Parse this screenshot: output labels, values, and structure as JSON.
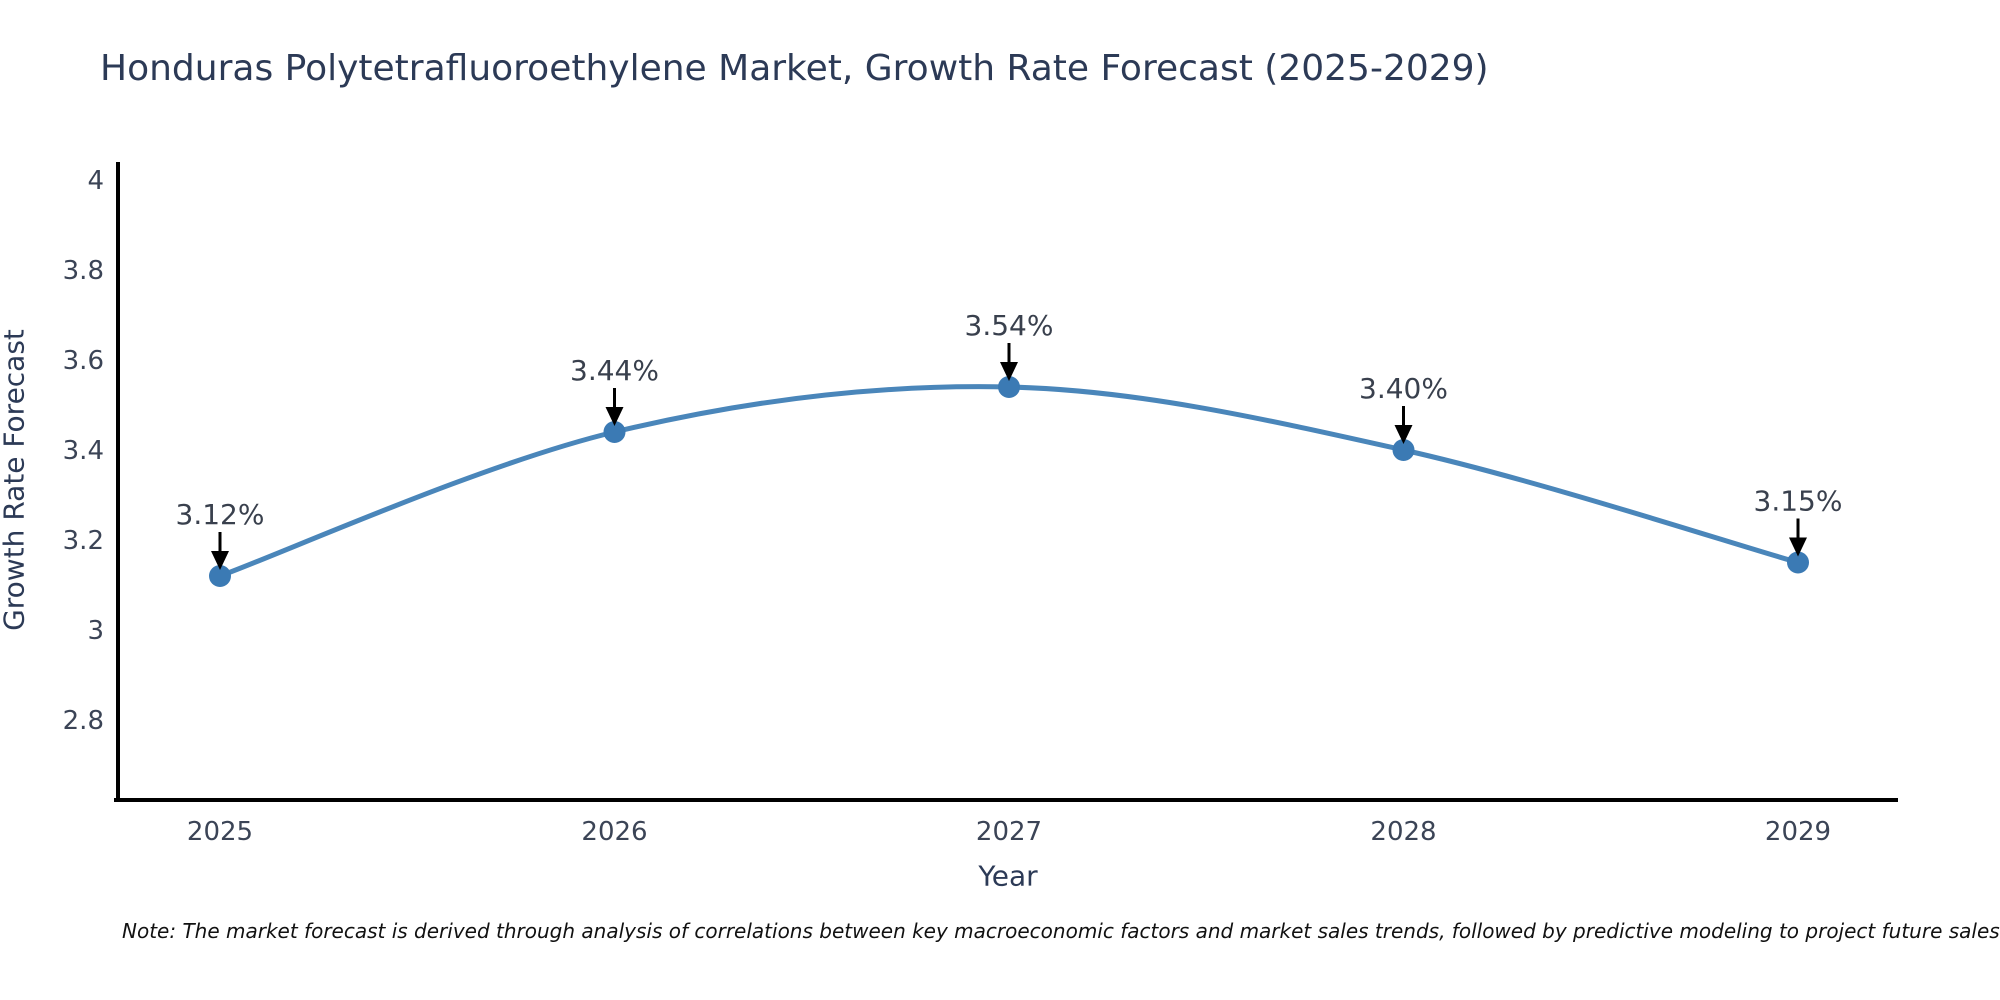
{
  "title": "Honduras Polytetrafluoroethylene Market, Growth Rate Forecast (2025-2029)",
  "note": "Note: The market forecast is derived through analysis of correlations between key macroeconomic factors and market sales trends, followed by predictive modeling to project future sales",
  "chart_data": {
    "type": "line",
    "title": "Honduras Polytetrafluoroethylene Market, Growth Rate Forecast (2025-2029)",
    "xlabel": "Year",
    "ylabel": "Growth Rate Forecast",
    "x": [
      2025,
      2026,
      2027,
      2028,
      2029
    ],
    "series": [
      {
        "name": "Growth Rate Forecast",
        "values": [
          3.12,
          3.44,
          3.54,
          3.4,
          3.15
        ]
      }
    ],
    "point_labels": [
      "3.12%",
      "3.44%",
      "3.54%",
      "3.40%",
      "3.15%"
    ],
    "xtick_labels": [
      "2025",
      "2026",
      "2027",
      "2028",
      "2029"
    ],
    "yticks": [
      2.8,
      3.0,
      3.2,
      3.4,
      3.6,
      3.8,
      4.0
    ],
    "ytick_labels": [
      "2.8",
      "3",
      "3.2",
      "3.4",
      "3.6",
      "3.8",
      "4"
    ],
    "ylim": [
      2.62,
      4.04
    ],
    "grid": false,
    "legend_position": "none",
    "annotation_style": "value label above point with black down arrow",
    "colors": {
      "line": "#4a86ba",
      "marker": "#3b7ab4",
      "axis": "#000000",
      "tick_text": "#3b4456",
      "title_text": "#2c3a56",
      "annotation_arrow": "#000000",
      "note_text": "#111111"
    }
  }
}
